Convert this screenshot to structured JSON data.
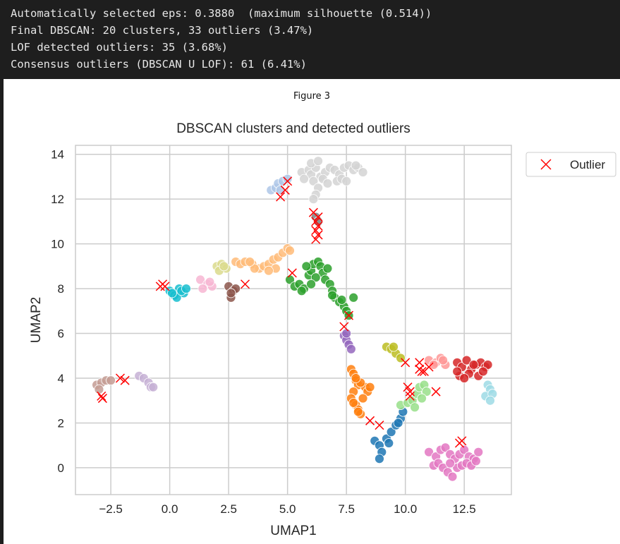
{
  "console": {
    "lines": [
      "Automatically selected eps: 0.3880  (maximum silhouette (0.514))",
      "Final DBSCAN: 20 clusters, 33 outliers (3.47%)",
      "LOF detected outliers: 35 (3.68%)",
      "Consensus outliers (DBSCAN U LOF): 61 (6.41%)"
    ]
  },
  "figure": {
    "label": "Figure 3"
  },
  "chart_data": {
    "type": "scatter",
    "title": "DBSCAN clusters and detected outliers",
    "xlabel": "UMAP1",
    "ylabel": "UMAP2",
    "xlim": [
      -4,
      14.5
    ],
    "ylim": [
      -1.2,
      14.4
    ],
    "xticks": [
      -2.5,
      0.0,
      2.5,
      5.0,
      7.5,
      10.0,
      12.5
    ],
    "xtick_labels": [
      "−2.5",
      "0.0",
      "2.5",
      "5.0",
      "7.5",
      "10.0",
      "12.5"
    ],
    "yticks": [
      0,
      2,
      4,
      6,
      8,
      10,
      12,
      14
    ],
    "ytick_labels": [
      "0",
      "2",
      "4",
      "6",
      "8",
      "10",
      "12",
      "14"
    ],
    "grid": true,
    "legend": {
      "placement": "outside-upper-right",
      "entries": [
        "Outlier"
      ]
    },
    "clusters": [
      {
        "color": "#d4d4d4",
        "points": [
          [
            5.6,
            13.2
          ],
          [
            5.9,
            13.3
          ],
          [
            6.0,
            13.1
          ],
          [
            6.2,
            13.4
          ],
          [
            6.4,
            13.0
          ],
          [
            6.6,
            13.2
          ],
          [
            6.8,
            13.4
          ],
          [
            7.0,
            13.3
          ],
          [
            7.2,
            13.1
          ],
          [
            7.4,
            13.4
          ],
          [
            7.6,
            13.5
          ],
          [
            7.8,
            13.3
          ],
          [
            8.0,
            13.4
          ],
          [
            8.2,
            13.2
          ],
          [
            6.1,
            12.8
          ],
          [
            6.3,
            12.5
          ],
          [
            6.2,
            12.2
          ],
          [
            6.5,
            12.9
          ],
          [
            6.7,
            12.7
          ],
          [
            7.1,
            12.8
          ],
          [
            7.3,
            12.9
          ],
          [
            6.0,
            13.6
          ],
          [
            6.3,
            13.7
          ],
          [
            5.7,
            12.9
          ],
          [
            7.5,
            12.8
          ],
          [
            7.9,
            13.5
          ],
          [
            6.1,
            12.0
          ]
        ]
      },
      {
        "color": "#aec7e8",
        "points": [
          [
            4.3,
            12.4
          ],
          [
            4.5,
            12.5
          ],
          [
            4.6,
            12.7
          ],
          [
            4.8,
            12.8
          ],
          [
            5.0,
            12.9
          ],
          [
            4.7,
            12.4
          ]
        ]
      },
      {
        "color": "#ffbb78",
        "points": [
          [
            2.8,
            9.2
          ],
          [
            3.0,
            9.1
          ],
          [
            3.2,
            9.2
          ],
          [
            3.5,
            9.1
          ],
          [
            3.8,
            8.9
          ],
          [
            4.0,
            9.0
          ],
          [
            4.2,
            9.1
          ],
          [
            4.4,
            9.3
          ],
          [
            4.6,
            9.4
          ],
          [
            4.8,
            9.6
          ],
          [
            5.0,
            9.8
          ],
          [
            5.1,
            9.7
          ],
          [
            4.5,
            8.9
          ],
          [
            4.2,
            8.8
          ],
          [
            3.6,
            8.9
          ],
          [
            3.4,
            9.2
          ]
        ]
      },
      {
        "color": "#dbdb8d",
        "points": [
          [
            2.0,
            9.0
          ],
          [
            2.2,
            9.1
          ],
          [
            2.4,
            8.9
          ],
          [
            2.1,
            8.8
          ],
          [
            2.3,
            9.0
          ]
        ]
      },
      {
        "color": "#f7b6d2",
        "points": [
          [
            1.3,
            8.4
          ],
          [
            1.6,
            8.2
          ],
          [
            1.8,
            8.1
          ],
          [
            1.4,
            8.0
          ],
          [
            1.7,
            8.3
          ]
        ]
      },
      {
        "color": "#17becf",
        "points": [
          [
            0.0,
            7.9
          ],
          [
            0.2,
            7.7
          ],
          [
            0.4,
            8.0
          ],
          [
            0.6,
            7.8
          ],
          [
            0.3,
            7.6
          ],
          [
            0.5,
            7.9
          ],
          [
            0.7,
            8.0
          ],
          [
            0.1,
            7.8
          ]
        ]
      },
      {
        "color": "#8c564b",
        "points": [
          [
            2.5,
            8.1
          ],
          [
            2.7,
            7.9
          ],
          [
            2.6,
            7.6
          ],
          [
            2.8,
            8.0
          ],
          [
            2.6,
            7.8
          ]
        ]
      },
      {
        "color": "#2ca02c",
        "points": [
          [
            5.1,
            8.4
          ],
          [
            5.3,
            8.1
          ],
          [
            5.5,
            8.2
          ],
          [
            5.7,
            8.0
          ],
          [
            5.9,
            8.6
          ],
          [
            6.0,
            8.8
          ],
          [
            6.1,
            9.1
          ],
          [
            6.3,
            9.2
          ],
          [
            6.4,
            9.0
          ],
          [
            6.5,
            8.7
          ],
          [
            6.6,
            8.4
          ],
          [
            6.8,
            8.2
          ],
          [
            6.9,
            7.9
          ],
          [
            7.0,
            7.6
          ],
          [
            7.2,
            7.4
          ],
          [
            7.4,
            7.2
          ],
          [
            7.5,
            7.0
          ],
          [
            7.6,
            6.8
          ],
          [
            7.8,
            7.6
          ],
          [
            6.2,
            8.5
          ],
          [
            6.0,
            8.2
          ],
          [
            6.7,
            8.9
          ],
          [
            5.8,
            9.0
          ],
          [
            6.9,
            7.7
          ],
          [
            7.3,
            7.5
          ],
          [
            5.6,
            7.9
          ]
        ]
      },
      {
        "color": "#9467bd",
        "points": [
          [
            7.4,
            5.9
          ],
          [
            7.5,
            5.7
          ],
          [
            7.6,
            5.5
          ],
          [
            7.7,
            5.3
          ],
          [
            7.5,
            6.0
          ]
        ]
      },
      {
        "color": "#ff7f0e",
        "points": [
          [
            7.7,
            4.4
          ],
          [
            7.8,
            4.2
          ],
          [
            7.9,
            3.9
          ],
          [
            8.0,
            3.7
          ],
          [
            7.8,
            3.4
          ],
          [
            7.7,
            3.1
          ],
          [
            7.9,
            2.8
          ],
          [
            8.0,
            2.6
          ],
          [
            8.1,
            2.4
          ],
          [
            8.3,
            3.6
          ],
          [
            8.4,
            3.4
          ],
          [
            8.2,
            3.1
          ],
          [
            7.8,
            2.9
          ],
          [
            8.1,
            3.8
          ],
          [
            8.5,
            3.6
          ],
          [
            8.0,
            2.5
          ],
          [
            7.9,
            4.0
          ]
        ]
      },
      {
        "color": "#1f77b4",
        "points": [
          [
            8.7,
            1.2
          ],
          [
            8.9,
            1.0
          ],
          [
            9.0,
            0.7
          ],
          [
            8.9,
            0.4
          ],
          [
            9.2,
            1.3
          ],
          [
            9.4,
            1.6
          ],
          [
            9.6,
            1.9
          ],
          [
            9.8,
            2.2
          ],
          [
            9.9,
            2.5
          ],
          [
            9.7,
            2.0
          ],
          [
            9.3,
            1.1
          ]
        ]
      },
      {
        "color": "#bcbd22",
        "points": [
          [
            9.2,
            5.4
          ],
          [
            9.4,
            5.3
          ],
          [
            9.6,
            5.1
          ],
          [
            9.8,
            4.9
          ],
          [
            9.5,
            5.4
          ]
        ]
      },
      {
        "color": "#98df8a",
        "points": [
          [
            9.8,
            2.8
          ],
          [
            10.1,
            2.9
          ],
          [
            10.3,
            3.0
          ],
          [
            10.5,
            3.3
          ],
          [
            10.6,
            3.6
          ],
          [
            10.8,
            3.7
          ],
          [
            10.9,
            3.4
          ],
          [
            10.7,
            3.1
          ],
          [
            10.4,
            2.7
          ]
        ]
      },
      {
        "color": "#ff9896",
        "points": [
          [
            11.0,
            4.8
          ],
          [
            11.3,
            4.7
          ],
          [
            11.5,
            4.9
          ],
          [
            11.7,
            4.6
          ],
          [
            11.6,
            4.8
          ],
          [
            11.2,
            4.6
          ]
        ]
      },
      {
        "color": "#d62728",
        "points": [
          [
            12.2,
            4.7
          ],
          [
            12.4,
            4.5
          ],
          [
            12.6,
            4.8
          ],
          [
            12.8,
            4.4
          ],
          [
            13.0,
            4.6
          ],
          [
            13.2,
            4.7
          ],
          [
            13.4,
            4.5
          ],
          [
            12.3,
            4.1
          ],
          [
            12.7,
            4.2
          ],
          [
            13.1,
            4.1
          ],
          [
            12.5,
            4.0
          ],
          [
            13.5,
            4.6
          ],
          [
            12.9,
            4.6
          ],
          [
            12.2,
            4.3
          ],
          [
            13.3,
            4.3
          ]
        ]
      },
      {
        "color": "#9edae5",
        "points": [
          [
            13.5,
            3.7
          ],
          [
            13.6,
            3.5
          ],
          [
            13.4,
            3.2
          ],
          [
            13.7,
            3.3
          ],
          [
            13.6,
            3.0
          ]
        ]
      },
      {
        "color": "#e377c2",
        "points": [
          [
            11.0,
            0.7
          ],
          [
            11.3,
            0.5
          ],
          [
            11.5,
            0.8
          ],
          [
            11.7,
            0.9
          ],
          [
            11.9,
            0.6
          ],
          [
            12.1,
            0.4
          ],
          [
            12.3,
            0.6
          ],
          [
            12.5,
            0.8
          ],
          [
            12.7,
            0.5
          ],
          [
            12.9,
            0.4
          ],
          [
            13.1,
            0.7
          ],
          [
            11.2,
            0.1
          ],
          [
            11.4,
            0.2
          ],
          [
            11.6,
            0.0
          ],
          [
            11.8,
            -0.2
          ],
          [
            12.0,
            -0.4
          ],
          [
            12.2,
            0.0
          ],
          [
            12.4,
            0.1
          ],
          [
            12.6,
            0.2
          ],
          [
            12.8,
            0.1
          ],
          [
            13.0,
            0.3
          ],
          [
            11.9,
            0.2
          ]
        ]
      },
      {
        "color": "#c49c94",
        "points": [
          [
            -3.1,
            3.7
          ],
          [
            -2.9,
            3.8
          ],
          [
            -2.7,
            3.9
          ],
          [
            -2.5,
            3.9
          ],
          [
            -3.0,
            3.5
          ]
        ]
      },
      {
        "color": "#c5b0d5",
        "points": [
          [
            -1.3,
            4.1
          ],
          [
            -1.1,
            4.0
          ],
          [
            -0.9,
            3.8
          ],
          [
            -0.8,
            3.6
          ],
          [
            -0.7,
            3.6
          ]
        ]
      },
      {
        "color": "#7f7f7f",
        "points": [
          [
            6.2,
            11.2
          ],
          [
            6.3,
            11.0
          ]
        ]
      }
    ],
    "outliers": [
      [
        5.0,
        12.8
      ],
      [
        4.9,
        12.4
      ],
      [
        4.7,
        12.1
      ],
      [
        6.1,
        11.4
      ],
      [
        6.3,
        11.2
      ],
      [
        6.2,
        11.0
      ],
      [
        6.3,
        10.8
      ],
      [
        6.2,
        10.6
      ],
      [
        6.3,
        10.4
      ],
      [
        6.2,
        10.2
      ],
      [
        -0.4,
        8.1
      ],
      [
        -0.3,
        8.2
      ],
      [
        -0.2,
        8.1
      ],
      [
        3.2,
        8.2
      ],
      [
        5.2,
        8.7
      ],
      [
        7.4,
        6.3
      ],
      [
        7.6,
        6.8
      ],
      [
        -2.9,
        3.2
      ],
      [
        -2.85,
        3.1
      ],
      [
        -2.1,
        4.0
      ],
      [
        -1.9,
        3.9
      ],
      [
        10.0,
        4.7
      ],
      [
        10.1,
        3.6
      ],
      [
        10.2,
        3.4
      ],
      [
        10.2,
        3.2
      ],
      [
        10.6,
        4.7
      ],
      [
        10.6,
        4.4
      ],
      [
        10.7,
        4.3
      ],
      [
        10.8,
        4.3
      ],
      [
        11.0,
        4.5
      ],
      [
        11.3,
        3.4
      ],
      [
        8.5,
        2.1
      ],
      [
        8.9,
        1.9
      ],
      [
        12.4,
        1.2
      ],
      [
        12.3,
        1.1
      ]
    ]
  }
}
